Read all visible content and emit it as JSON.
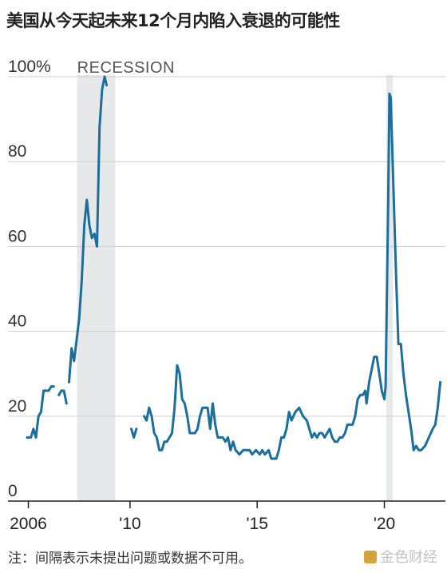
{
  "title": "美国从今天起未来12个月内陷入衰退的可能性",
  "note": "注：间隔表示未提出问题或数据不可用。",
  "watermark": "金色财经",
  "chart_data": {
    "type": "line",
    "title": "美国从今天起未来12个月内陷入衰退的可能性",
    "xlabel": "",
    "ylabel": "",
    "xlim": [
      2005.2,
      2022.4
    ],
    "ylim": [
      0,
      100
    ],
    "y_ticks": [
      0,
      20,
      40,
      60,
      80,
      100
    ],
    "y_tick_labels": [
      "0",
      "20",
      "40",
      "60",
      "80",
      "100%"
    ],
    "x_ticks": [
      2006,
      2010,
      2015,
      2020
    ],
    "x_tick_labels": [
      "2006",
      "'10",
      "'15",
      "'20"
    ],
    "grid": "horizontal",
    "line_color": "#1c6e9c",
    "recession_shading_color": "#e6e8ea",
    "recession_label": "RECESSION",
    "recessions": [
      [
        2007.92,
        2009.42
      ],
      [
        2020.08,
        2020.33
      ]
    ],
    "series": [
      {
        "segments": [
          [
            [
              2005.95,
              15
            ],
            [
              2006.1,
              15
            ],
            [
              2006.2,
              17
            ],
            [
              2006.3,
              15
            ],
            [
              2006.4,
              20
            ],
            [
              2006.5,
              21
            ],
            [
              2006.6,
              26
            ],
            [
              2006.8,
              26
            ],
            [
              2006.9,
              27
            ],
            [
              2007.0,
              27
            ]
          ],
          [
            [
              2007.2,
              25
            ],
            [
              2007.3,
              26
            ],
            [
              2007.4,
              26
            ],
            [
              2007.5,
              23
            ]
          ],
          [
            [
              2007.6,
              28
            ],
            [
              2007.7,
              36
            ],
            [
              2007.8,
              33
            ],
            [
              2007.9,
              38
            ],
            [
              2008.0,
              43
            ],
            [
              2008.1,
              52
            ],
            [
              2008.2,
              65
            ],
            [
              2008.3,
              71
            ],
            [
              2008.4,
              65
            ],
            [
              2008.5,
              62
            ],
            [
              2008.6,
              63
            ],
            [
              2008.7,
              60
            ],
            [
              2008.8,
              88
            ],
            [
              2008.9,
              97
            ],
            [
              2009.0,
              100
            ],
            [
              2009.08,
              98
            ]
          ],
          [
            [
              2010.05,
              17
            ],
            [
              2010.15,
              15
            ],
            [
              2010.25,
              17
            ]
          ],
          [
            [
              2010.55,
              20
            ],
            [
              2010.65,
              19
            ],
            [
              2010.75,
              22
            ],
            [
              2010.85,
              20
            ],
            [
              2010.95,
              16
            ],
            [
              2011.05,
              15
            ],
            [
              2011.15,
              12
            ],
            [
              2011.25,
              12
            ],
            [
              2011.35,
              14
            ],
            [
              2011.45,
              14
            ],
            [
              2011.55,
              15
            ],
            [
              2011.65,
              16
            ],
            [
              2011.75,
              22
            ],
            [
              2011.85,
              32
            ],
            [
              2011.95,
              30
            ],
            [
              2012.05,
              24
            ],
            [
              2012.15,
              23
            ],
            [
              2012.25,
              20
            ],
            [
              2012.35,
              16
            ],
            [
              2012.55,
              16
            ],
            [
              2012.65,
              17
            ],
            [
              2012.75,
              20
            ],
            [
              2012.85,
              22
            ],
            [
              2013.05,
              22
            ],
            [
              2013.15,
              17
            ],
            [
              2013.25,
              23
            ],
            [
              2013.35,
              18
            ],
            [
              2013.45,
              15
            ],
            [
              2013.65,
              15
            ],
            [
              2013.75,
              14
            ],
            [
              2013.85,
              15
            ],
            [
              2013.95,
              12
            ],
            [
              2014.05,
              14
            ],
            [
              2014.15,
              12
            ],
            [
              2014.3,
              11
            ],
            [
              2014.45,
              12
            ],
            [
              2014.7,
              12
            ],
            [
              2014.8,
              11
            ],
            [
              2014.95,
              12
            ],
            [
              2015.1,
              11
            ],
            [
              2015.2,
              12
            ],
            [
              2015.3,
              11
            ],
            [
              2015.45,
              12
            ],
            [
              2015.55,
              10
            ],
            [
              2015.75,
              10
            ],
            [
              2015.85,
              12
            ],
            [
              2015.95,
              15
            ],
            [
              2016.05,
              15
            ],
            [
              2016.15,
              17
            ],
            [
              2016.25,
              21
            ],
            [
              2016.35,
              19
            ],
            [
              2016.5,
              21
            ],
            [
              2016.65,
              22
            ],
            [
              2016.8,
              20
            ],
            [
              2016.95,
              19
            ],
            [
              2017.05,
              17
            ],
            [
              2017.15,
              15
            ],
            [
              2017.25,
              16
            ],
            [
              2017.35,
              15
            ],
            [
              2017.45,
              16
            ],
            [
              2017.55,
              16
            ],
            [
              2017.65,
              15
            ],
            [
              2017.75,
              16
            ],
            [
              2017.85,
              17
            ],
            [
              2017.95,
              15
            ],
            [
              2018.05,
              14
            ],
            [
              2018.15,
              14
            ],
            [
              2018.25,
              15
            ],
            [
              2018.35,
              15
            ],
            [
              2018.45,
              16
            ],
            [
              2018.55,
              18
            ],
            [
              2018.75,
              18
            ],
            [
              2018.85,
              20
            ],
            [
              2018.95,
              24
            ],
            [
              2019.05,
              25
            ],
            [
              2019.15,
              25
            ],
            [
              2019.25,
              26
            ],
            [
              2019.3,
              23
            ],
            [
              2019.4,
              28
            ],
            [
              2019.5,
              31
            ],
            [
              2019.6,
              34
            ],
            [
              2019.7,
              34
            ],
            [
              2019.8,
              30
            ],
            [
              2019.9,
              26
            ],
            [
              2020.0,
              24
            ],
            [
              2020.05,
              27
            ],
            [
              2020.15,
              70
            ],
            [
              2020.2,
              96
            ],
            [
              2020.25,
              95
            ],
            [
              2020.35,
              75
            ],
            [
              2020.45,
              55
            ],
            [
              2020.55,
              37
            ],
            [
              2020.65,
              37
            ],
            [
              2020.75,
              30
            ],
            [
              2020.85,
              25
            ],
            [
              2020.95,
              21
            ],
            [
              2021.05,
              17
            ],
            [
              2021.15,
              12
            ],
            [
              2021.25,
              13
            ],
            [
              2021.35,
              12
            ],
            [
              2021.45,
              12
            ],
            [
              2021.6,
              13
            ],
            [
              2021.75,
              15
            ],
            [
              2021.9,
              17
            ],
            [
              2022.0,
              18
            ],
            [
              2022.1,
              22
            ],
            [
              2022.2,
              28
            ]
          ]
        ]
      }
    ]
  }
}
